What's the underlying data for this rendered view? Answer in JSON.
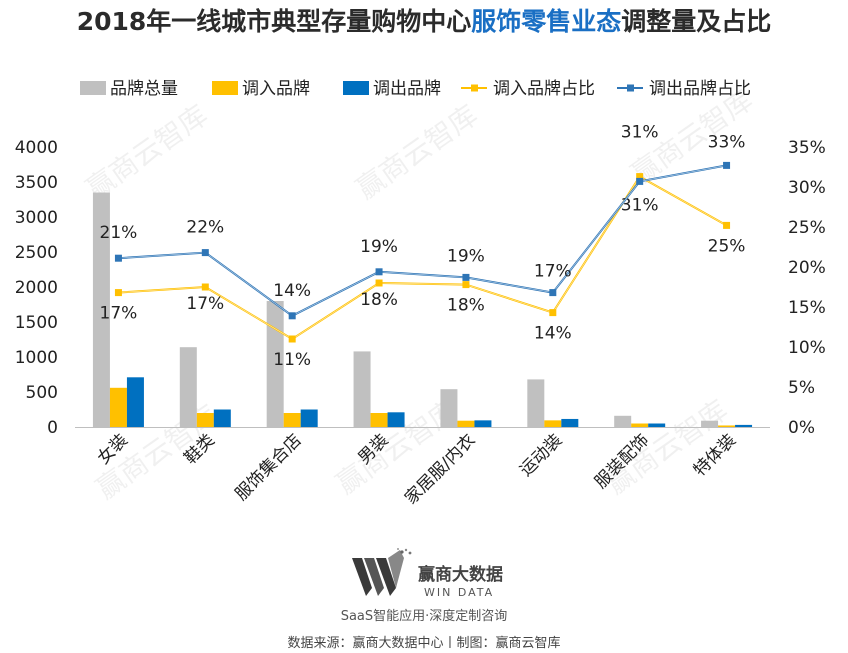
{
  "title": {
    "prefix": "2018年一线城市典型存量购物中心",
    "highlight": "服饰零售业态",
    "suffix": "调整量及占比"
  },
  "chart_data": {
    "type": "bar",
    "categories": [
      "女装",
      "鞋类",
      "服饰集合店",
      "男装",
      "家居服/内衣",
      "运动装",
      "服装配饰",
      "特体装"
    ],
    "series": [
      {
        "name": "品牌总量",
        "type": "bar",
        "axis": "left",
        "color": "#c0c0c0",
        "values": [
          3350,
          1140,
          1800,
          1080,
          540,
          680,
          160,
          90
        ]
      },
      {
        "name": "调入品牌",
        "type": "bar",
        "axis": "left",
        "color": "#ffc000",
        "values": [
          560,
          200,
          200,
          200,
          90,
          95,
          50,
          22
        ]
      },
      {
        "name": "调出品牌",
        "type": "bar",
        "axis": "left",
        "color": "#0070c0",
        "values": [
          710,
          250,
          250,
          210,
          95,
          115,
          50,
          30
        ]
      },
      {
        "name": "调入品牌占比",
        "type": "line",
        "axis": "right",
        "color": "#ffc000",
        "values": [
          16.8,
          17.5,
          11.0,
          18.0,
          17.8,
          14.3,
          31.3,
          25.2
        ],
        "labels": [
          "17%",
          "17%",
          "11%",
          "18%",
          "18%",
          "14%",
          "31%",
          "25%"
        ]
      },
      {
        "name": "调出品牌占比",
        "type": "line",
        "axis": "right",
        "color": "#2e75b6",
        "values": [
          21.1,
          21.8,
          13.9,
          19.4,
          18.7,
          16.8,
          30.7,
          32.7
        ],
        "labels": [
          "21%",
          "22%",
          "14%",
          "19%",
          "19%",
          "17%",
          "31%",
          "33%"
        ]
      }
    ],
    "ylim_left": [
      0,
      4000
    ],
    "yticks_left": [
      "0",
      "500",
      "1000",
      "1500",
      "2000",
      "2500",
      "3000",
      "3500",
      "4000"
    ],
    "ylim_right": [
      0,
      35
    ],
    "yticks_right": [
      "0%",
      "5%",
      "10%",
      "15%",
      "20%",
      "25%",
      "30%",
      "35%"
    ],
    "legend_position": "top",
    "grid": false
  },
  "watermark": "赢商云智库",
  "footer": {
    "brand_cn": "赢商大数据",
    "brand_en": "WIN DATA",
    "tagline": "SaaS智能应用·深度定制咨询",
    "source": "数据来源：赢商大数据中心丨制图：赢商云智库"
  }
}
